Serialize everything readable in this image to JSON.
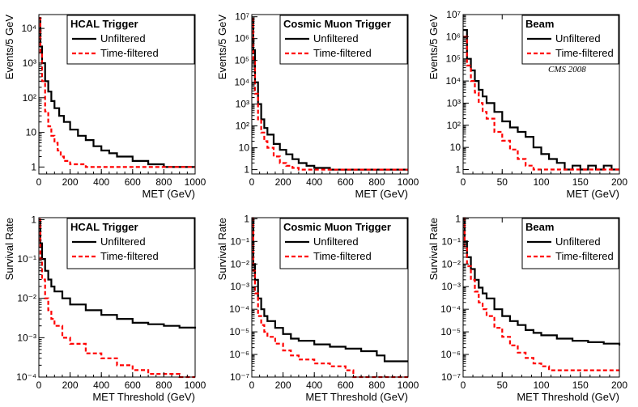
{
  "colors": {
    "unfiltered": "#000000",
    "time_filtered": "#ff0000"
  },
  "chart_data": [
    {
      "type": "line",
      "scale": "log",
      "title": "HCAL Trigger",
      "xlabel": "MET (GeV)",
      "ylabel": "Events/5 GeV",
      "xlim": [
        0,
        1000
      ],
      "ylim_log10": [
        -0.2,
        4.4
      ],
      "xticks": [
        0,
        200,
        400,
        600,
        800,
        1000
      ],
      "xtick_labels": [
        "0",
        "200",
        "400",
        "600",
        "800",
        "1000"
      ],
      "yticks": [
        1,
        10,
        100,
        1000,
        10000
      ],
      "ytick_labels": [
        "1",
        "10",
        "10²",
        "10³",
        "10⁴"
      ],
      "series": [
        {
          "name": "Unfiltered",
          "x": [
            0,
            10,
            20,
            40,
            60,
            80,
            100,
            130,
            160,
            200,
            250,
            300,
            350,
            400,
            450,
            500,
            550,
            600,
            650,
            700,
            750,
            800,
            850,
            900,
            950,
            1000
          ],
          "y": [
            20000,
            3000,
            1000,
            300,
            150,
            80,
            50,
            30,
            20,
            12,
            8,
            6,
            4,
            3,
            2.5,
            2,
            2,
            1.5,
            1.5,
            1.2,
            1.2,
            1,
            1,
            1,
            1,
            1
          ]
        },
        {
          "name": "Time-filtered",
          "x": [
            0,
            10,
            20,
            40,
            60,
            80,
            100,
            120,
            140,
            160,
            180,
            200,
            250,
            300,
            350,
            400,
            450
          ],
          "y": [
            20000,
            2000,
            300,
            40,
            15,
            8,
            5,
            3,
            2,
            1.5,
            1.5,
            1.2,
            1.2,
            1,
            1,
            1,
            1
          ]
        }
      ],
      "annotation": ""
    },
    {
      "type": "line",
      "scale": "log",
      "title": "Cosmic Muon Trigger",
      "xlabel": "MET (GeV)",
      "ylabel": "Events/5 GeV",
      "xlim": [
        0,
        1000
      ],
      "ylim_log10": [
        -0.2,
        7.1
      ],
      "xticks": [
        0,
        200,
        400,
        600,
        800,
        1000
      ],
      "xtick_labels": [
        "0",
        "200",
        "400",
        "600",
        "800",
        "1000"
      ],
      "yticks": [
        1,
        10,
        100,
        1000,
        10000,
        100000,
        1000000,
        10000000
      ],
      "ytick_labels": [
        "1",
        "10",
        "10²",
        "10³",
        "10⁴",
        "10⁵",
        "10⁶",
        "10⁷"
      ],
      "series": [
        {
          "name": "Unfiltered",
          "x": [
            0,
            10,
            20,
            40,
            60,
            80,
            100,
            140,
            180,
            220,
            260,
            300,
            350,
            400,
            500,
            600,
            700,
            800,
            900,
            1000
          ],
          "y": [
            8000000,
            300000,
            10000,
            1000,
            200,
            80,
            40,
            15,
            8,
            5,
            3,
            2,
            1.5,
            1.2,
            1,
            1,
            1,
            1,
            1,
            1
          ]
        },
        {
          "name": "Time-filtered",
          "x": [
            0,
            10,
            20,
            40,
            60,
            80,
            100,
            140,
            180,
            220,
            260,
            300,
            350
          ],
          "y": [
            8000000,
            100000,
            3000,
            200,
            50,
            20,
            10,
            4,
            2,
            1.5,
            1.2,
            1,
            1
          ]
        }
      ],
      "annotation": ""
    },
    {
      "type": "line",
      "scale": "log",
      "title": "Beam",
      "xlabel": "MET (GeV)",
      "ylabel": "Events/5 GeV",
      "xlim": [
        0,
        200
      ],
      "ylim_log10": [
        -0.2,
        7.0
      ],
      "xticks": [
        0,
        50,
        100,
        150,
        200
      ],
      "xtick_labels": [
        "0",
        "50",
        "100",
        "150",
        "200"
      ],
      "yticks": [
        1,
        10,
        100,
        1000,
        10000,
        100000,
        1000000,
        10000000
      ],
      "ytick_labels": [
        "1",
        "10",
        "10²",
        "10³",
        "10⁴",
        "10⁵",
        "10⁶",
        "10⁷"
      ],
      "series": [
        {
          "name": "Unfiltered",
          "x": [
            0,
            5,
            10,
            15,
            20,
            25,
            30,
            40,
            50,
            60,
            70,
            80,
            90,
            100,
            110,
            120,
            130,
            140,
            150,
            160,
            170,
            180,
            190,
            200
          ],
          "y": [
            2000000,
            100000,
            30000,
            10000,
            4000,
            2000,
            1000,
            400,
            150,
            80,
            50,
            30,
            10,
            5,
            3,
            2,
            1,
            1.5,
            1,
            1.5,
            1,
            1.5,
            1,
            1
          ]
        },
        {
          "name": "Time-filtered",
          "x": [
            0,
            5,
            10,
            15,
            20,
            25,
            30,
            40,
            50,
            60,
            70,
            80,
            90,
            100
          ],
          "y": [
            1000000,
            50000,
            10000,
            3000,
            1000,
            400,
            200,
            50,
            20,
            8,
            3,
            1.5,
            1,
            1
          ]
        }
      ],
      "annotation": "CMS 2008"
    },
    {
      "type": "line",
      "scale": "log",
      "title": "HCAL Trigger",
      "xlabel": "MET Threshold (GeV)",
      "ylabel": "Survival Rate",
      "xlim": [
        0,
        1000
      ],
      "ylim_log10": [
        -4.0,
        0.05
      ],
      "xticks": [
        0,
        200,
        400,
        600,
        800,
        1000
      ],
      "xtick_labels": [
        "0",
        "200",
        "400",
        "600",
        "800",
        "1000"
      ],
      "yticks": [
        0.0001,
        0.001,
        0.01,
        0.1,
        1
      ],
      "ytick_labels": [
        "10⁻⁴",
        "10⁻³",
        "10⁻²",
        "10⁻¹",
        "1"
      ],
      "series": [
        {
          "name": "Unfiltered",
          "x": [
            0,
            10,
            20,
            40,
            60,
            80,
            100,
            150,
            200,
            300,
            400,
            500,
            600,
            700,
            800,
            900,
            1000
          ],
          "y": [
            1,
            0.25,
            0.1,
            0.05,
            0.03,
            0.02,
            0.015,
            0.01,
            0.007,
            0.005,
            0.0038,
            0.003,
            0.0024,
            0.0022,
            0.002,
            0.0018,
            0.0017
          ]
        },
        {
          "name": "Time-filtered",
          "x": [
            0,
            10,
            20,
            40,
            60,
            80,
            100,
            150,
            200,
            300,
            400,
            500,
            600,
            700,
            800,
            900,
            1000
          ],
          "y": [
            1,
            0.1,
            0.03,
            0.01,
            0.005,
            0.003,
            0.002,
            0.001,
            0.0007,
            0.0004,
            0.0003,
            0.0002,
            0.00015,
            0.00012,
            0.00012,
            0.0001,
            0.0001
          ]
        }
      ],
      "annotation": ""
    },
    {
      "type": "line",
      "scale": "log",
      "title": "Cosmic Muon Trigger",
      "xlabel": "MET Threshold (GeV)",
      "ylabel": "Survival Rate",
      "xlim": [
        0,
        1000
      ],
      "ylim_log10": [
        -7.0,
        0.05
      ],
      "xticks": [
        0,
        200,
        400,
        600,
        800,
        1000
      ],
      "xtick_labels": [
        "0",
        "200",
        "400",
        "600",
        "800",
        "1000"
      ],
      "yticks": [
        1e-07,
        1e-06,
        1e-05,
        0.0001,
        0.001,
        0.01,
        0.1,
        1
      ],
      "ytick_labels": [
        "10⁻⁷",
        "10⁻⁶",
        "10⁻⁵",
        "10⁻⁴",
        "10⁻³",
        "10⁻²",
        "10⁻¹",
        "1"
      ],
      "series": [
        {
          "name": "Unfiltered",
          "x": [
            0,
            10,
            20,
            40,
            60,
            80,
            100,
            150,
            200,
            250,
            300,
            400,
            500,
            600,
            700,
            800,
            850,
            900,
            1000
          ],
          "y": [
            1,
            0.01,
            0.002,
            0.0003,
            0.0001,
            5e-05,
            3e-05,
            1.5e-05,
            8e-06,
            5e-06,
            4e-06,
            2.8e-06,
            2.2e-06,
            1.8e-06,
            1.4e-06,
            9e-07,
            5e-07,
            5e-07,
            5e-07
          ]
        },
        {
          "name": "Time-filtered",
          "x": [
            0,
            10,
            20,
            40,
            60,
            80,
            100,
            150,
            200,
            250,
            300,
            400,
            500,
            600,
            650,
            700,
            1000
          ],
          "y": [
            1,
            0.005,
            0.0005,
            5e-05,
            2e-05,
            1e-05,
            6e-06,
            3e-06,
            1.5e-06,
            9e-07,
            6e-07,
            4e-07,
            3e-07,
            2e-07,
            1e-07,
            1e-07,
            1e-07
          ]
        }
      ],
      "annotation": ""
    },
    {
      "type": "line",
      "scale": "log",
      "title": "Beam",
      "xlabel": "MET Threshold (GeV)",
      "ylabel": "Survival Rate",
      "xlim": [
        0,
        200
      ],
      "ylim_log10": [
        -7.0,
        0.05
      ],
      "xticks": [
        0,
        50,
        100,
        150,
        200
      ],
      "xtick_labels": [
        "0",
        "50",
        "100",
        "150",
        "200"
      ],
      "yticks": [
        1e-07,
        1e-06,
        1e-05,
        0.0001,
        0.001,
        0.01,
        0.1,
        1
      ],
      "ytick_labels": [
        "10⁻⁷",
        "10⁻⁶",
        "10⁻⁵",
        "10⁻⁴",
        "10⁻³",
        "10⁻²",
        "10⁻¹",
        "1"
      ],
      "series": [
        {
          "name": "Unfiltered",
          "x": [
            0,
            2,
            5,
            10,
            15,
            20,
            25,
            30,
            40,
            50,
            60,
            70,
            80,
            90,
            100,
            120,
            140,
            160,
            180,
            200
          ],
          "y": [
            1,
            0.1,
            0.02,
            0.006,
            0.002,
            0.0009,
            0.0005,
            0.0003,
            0.0001,
            5e-05,
            3e-05,
            2e-05,
            1.2e-05,
            9e-06,
            7e-06,
            5e-06,
            4e-06,
            3.5e-06,
            3e-06,
            2.5e-06
          ]
        },
        {
          "name": "Time-filtered",
          "x": [
            0,
            2,
            5,
            10,
            15,
            20,
            25,
            30,
            40,
            50,
            60,
            70,
            80,
            90,
            100,
            110,
            140,
            200
          ],
          "y": [
            1,
            0.05,
            0.008,
            0.002,
            0.0006,
            0.0002,
            0.0001,
            5e-05,
            1.5e-05,
            6e-06,
            2.5e-06,
            1.2e-06,
            7e-07,
            4e-07,
            3e-07,
            2e-07,
            2e-07,
            2e-07
          ]
        }
      ],
      "annotation": ""
    }
  ]
}
